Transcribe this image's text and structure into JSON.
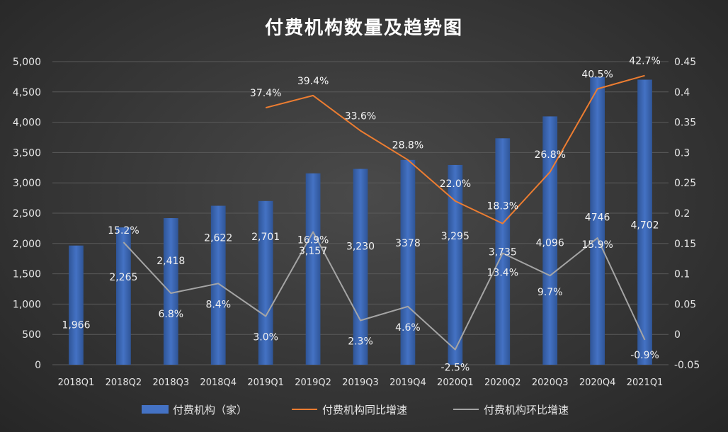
{
  "chart_data": {
    "type": "bar",
    "title": "付费机构数量及趋势图",
    "categories": [
      "2018Q1",
      "2018Q2",
      "2018Q3",
      "2018Q4",
      "2019Q1",
      "2019Q2",
      "2019Q3",
      "2019Q4",
      "2020Q1",
      "2020Q2",
      "2020Q3",
      "2020Q4",
      "2021Q1"
    ],
    "y_left": {
      "ylim": [
        0,
        5000
      ],
      "ticks": [
        "0",
        "500",
        "1,000",
        "1,500",
        "2,000",
        "2,500",
        "3,000",
        "3,500",
        "4,000",
        "4,500",
        "5,000"
      ]
    },
    "y_right": {
      "ylim": [
        -0.05,
        0.45
      ],
      "ticks": [
        "-0.05",
        "0",
        "0.05",
        "0.1",
        "0.15",
        "0.2",
        "0.25",
        "0.3",
        "0.35",
        "0.4",
        "0.45"
      ]
    },
    "grid": true,
    "legend_position": "bottom",
    "series": [
      {
        "name": "付费机构（家）",
        "type": "bar",
        "axis": "left",
        "color": "#4472c4",
        "values": [
          1966,
          2265,
          2418,
          2622,
          2701,
          3157,
          3230,
          3378,
          3295,
          3735,
          4096,
          4746,
          4702
        ],
        "labels": [
          "1,966",
          "2,265",
          "2,418",
          "2,622",
          "2,701",
          "3,157",
          "3,230",
          "3378",
          "3,295",
          "3,735",
          "4,096",
          "4746",
          "4,702"
        ]
      },
      {
        "name": "付费机构同比增速",
        "type": "line",
        "axis": "right",
        "color": "#ed7d31",
        "values": [
          null,
          null,
          null,
          null,
          0.374,
          0.394,
          0.336,
          0.288,
          0.22,
          0.183,
          0.268,
          0.405,
          0.427
        ],
        "labels": [
          "",
          "",
          "",
          "",
          "37.4%",
          "39.4%",
          "33.6%",
          "28.8%",
          "22.0%",
          "18.3%",
          "26.8%",
          "40.5%",
          "42.7%"
        ]
      },
      {
        "name": "付费机构环比增速",
        "type": "line",
        "axis": "right",
        "color": "#a5a5a5",
        "values": [
          null,
          0.152,
          0.068,
          0.084,
          0.03,
          0.169,
          0.023,
          0.046,
          -0.025,
          0.134,
          0.097,
          0.159,
          -0.009
        ],
        "labels": [
          "",
          "15.2%",
          "6.8%",
          "8.4%",
          "3.0%",
          "16.9%",
          "2.3%",
          "4.6%",
          "-2.5%",
          "13.4%",
          "9.7%",
          "15.9%",
          "-0.9%"
        ]
      }
    ]
  }
}
